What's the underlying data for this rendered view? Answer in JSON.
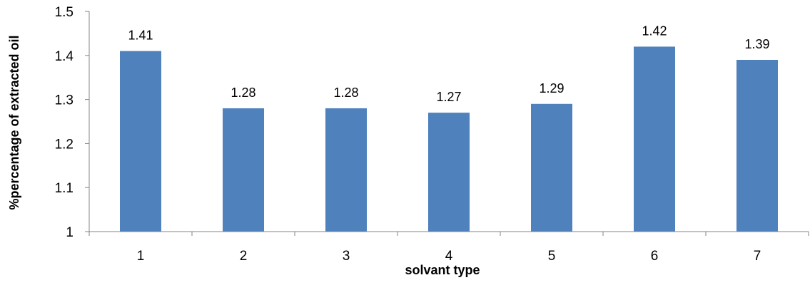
{
  "chart_data": {
    "type": "bar",
    "categories": [
      "1",
      "2",
      "3",
      "4",
      "5",
      "6",
      "7"
    ],
    "values": [
      1.41,
      1.28,
      1.28,
      1.27,
      1.29,
      1.42,
      1.39
    ],
    "data_labels": [
      "1.41",
      "1.28",
      "1.28",
      "1.27",
      "1.29",
      "1.42",
      "1.39"
    ],
    "y_ticks": [
      "1",
      "1.1",
      "1.2",
      "1.3",
      "1.4",
      "1.5"
    ],
    "xlabel": "solvant type",
    "ylabel": "%percentage of extracted oil",
    "ylim": [
      1,
      1.5
    ],
    "grid": false,
    "legend": false,
    "bar_color": "#4F81BD",
    "axis_color": "#868686"
  }
}
